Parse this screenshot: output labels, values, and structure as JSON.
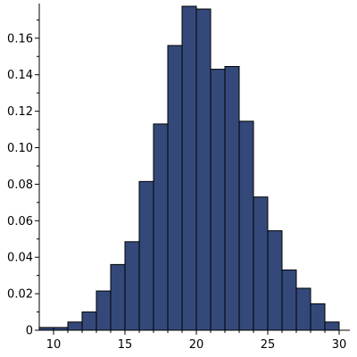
{
  "chart_data": {
    "type": "bar",
    "title": "",
    "xlabel": "",
    "ylabel": "",
    "bar_color": "#34497a",
    "edge_color": "#000000",
    "bin_width": 1,
    "xlim": [
      9,
      30.5
    ],
    "ylim": [
      0,
      0.178
    ],
    "x_ticks": [
      10,
      15,
      20,
      25,
      30
    ],
    "y_ticks": [
      0,
      0.02,
      0.04,
      0.06,
      0.08,
      0.1,
      0.12,
      0.14,
      0.16
    ],
    "x_tick_labels": [
      "10",
      "15",
      "20",
      "25",
      "30"
    ],
    "y_tick_labels": [
      "0",
      "0.02",
      "0.04",
      "0.06",
      "0.08",
      "0.10",
      "0.12",
      "0.14",
      "0.16"
    ],
    "grid": false,
    "legend": "none",
    "bins": [
      {
        "start": 9,
        "value": 0.0015
      },
      {
        "start": 10,
        "value": 0.0015
      },
      {
        "start": 11,
        "value": 0.0045
      },
      {
        "start": 12,
        "value": 0.01
      },
      {
        "start": 13,
        "value": 0.0215
      },
      {
        "start": 14,
        "value": 0.036
      },
      {
        "start": 15,
        "value": 0.0485
      },
      {
        "start": 16,
        "value": 0.0815
      },
      {
        "start": 17,
        "value": 0.113
      },
      {
        "start": 18,
        "value": 0.156
      },
      {
        "start": 19,
        "value": 0.1775
      },
      {
        "start": 20,
        "value": 0.176
      },
      {
        "start": 21,
        "value": 0.143
      },
      {
        "start": 22,
        "value": 0.1445
      },
      {
        "start": 23,
        "value": 0.1145
      },
      {
        "start": 24,
        "value": 0.073
      },
      {
        "start": 25,
        "value": 0.0545
      },
      {
        "start": 26,
        "value": 0.033
      },
      {
        "start": 27,
        "value": 0.023
      },
      {
        "start": 28,
        "value": 0.0145
      },
      {
        "start": 29,
        "value": 0.0045
      }
    ]
  }
}
